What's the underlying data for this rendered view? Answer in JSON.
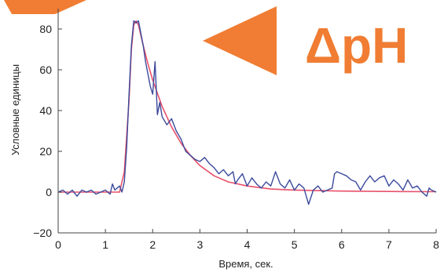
{
  "banner": {
    "text": "ΔpH",
    "color": "#f07d33"
  },
  "chart_data": {
    "type": "line",
    "xlabel": "Время, сек.",
    "ylabel": "Условные единицы",
    "xlim": [
      0,
      8
    ],
    "ylim": [
      -20,
      90
    ],
    "x_ticks": [
      "0",
      "1",
      "2",
      "3",
      "4",
      "5",
      "6",
      "7",
      "8"
    ],
    "y_ticks": [
      "−20",
      "0",
      "20",
      "40",
      "60",
      "80"
    ],
    "y_tick_values": [
      -20,
      0,
      20,
      40,
      60,
      80
    ],
    "grid": false,
    "series": [
      {
        "color": "#3b4a9c",
        "points": [
          [
            0.0,
            0
          ],
          [
            0.1,
            1
          ],
          [
            0.2,
            -1
          ],
          [
            0.3,
            1
          ],
          [
            0.4,
            -2
          ],
          [
            0.5,
            1
          ],
          [
            0.6,
            0
          ],
          [
            0.7,
            1
          ],
          [
            0.8,
            -1
          ],
          [
            0.9,
            0
          ],
          [
            1.0,
            1
          ],
          [
            1.1,
            -1
          ],
          [
            1.15,
            4
          ],
          [
            1.2,
            1
          ],
          [
            1.3,
            3
          ],
          [
            1.35,
            0
          ],
          [
            1.4,
            5
          ],
          [
            1.45,
            22
          ],
          [
            1.5,
            48
          ],
          [
            1.55,
            72
          ],
          [
            1.6,
            84
          ],
          [
            1.65,
            83
          ],
          [
            1.7,
            84
          ],
          [
            1.75,
            78
          ],
          [
            1.8,
            72
          ],
          [
            1.85,
            64
          ],
          [
            1.9,
            58
          ],
          [
            1.95,
            52
          ],
          [
            2.0,
            48
          ],
          [
            2.05,
            64
          ],
          [
            2.1,
            38
          ],
          [
            2.15,
            44
          ],
          [
            2.2,
            37
          ],
          [
            2.3,
            33
          ],
          [
            2.4,
            36
          ],
          [
            2.5,
            30
          ],
          [
            2.6,
            26
          ],
          [
            2.7,
            20
          ],
          [
            2.8,
            18
          ],
          [
            2.9,
            16
          ],
          [
            3.0,
            15
          ],
          [
            3.1,
            17
          ],
          [
            3.2,
            14
          ],
          [
            3.3,
            12
          ],
          [
            3.4,
            9
          ],
          [
            3.5,
            11
          ],
          [
            3.6,
            8
          ],
          [
            3.7,
            10
          ],
          [
            3.75,
            4
          ],
          [
            3.8,
            6
          ],
          [
            3.9,
            9
          ],
          [
            4.0,
            3
          ],
          [
            4.1,
            7
          ],
          [
            4.2,
            4
          ],
          [
            4.3,
            2
          ],
          [
            4.4,
            5
          ],
          [
            4.5,
            3
          ],
          [
            4.6,
            10
          ],
          [
            4.7,
            4
          ],
          [
            4.8,
            2
          ],
          [
            4.9,
            6
          ],
          [
            5.0,
            1
          ],
          [
            5.1,
            4
          ],
          [
            5.2,
            2
          ],
          [
            5.3,
            -6
          ],
          [
            5.4,
            1
          ],
          [
            5.5,
            3
          ],
          [
            5.6,
            0
          ],
          [
            5.7,
            1
          ],
          [
            5.8,
            2
          ],
          [
            5.85,
            9
          ],
          [
            5.9,
            10
          ],
          [
            6.0,
            9
          ],
          [
            6.1,
            8
          ],
          [
            6.2,
            6
          ],
          [
            6.3,
            5
          ],
          [
            6.4,
            1
          ],
          [
            6.5,
            5
          ],
          [
            6.6,
            8
          ],
          [
            6.7,
            5
          ],
          [
            6.8,
            7
          ],
          [
            6.9,
            8
          ],
          [
            7.0,
            3
          ],
          [
            7.1,
            6
          ],
          [
            7.2,
            4
          ],
          [
            7.3,
            1
          ],
          [
            7.4,
            6
          ],
          [
            7.5,
            2
          ],
          [
            7.6,
            3
          ],
          [
            7.7,
            0
          ],
          [
            7.8,
            -2
          ],
          [
            7.85,
            2
          ],
          [
            7.9,
            1
          ],
          [
            8.0,
            0
          ]
        ]
      },
      {
        "color": "#e8506a",
        "points": [
          [
            0.0,
            0
          ],
          [
            1.3,
            0
          ],
          [
            1.4,
            10
          ],
          [
            1.5,
            45
          ],
          [
            1.55,
            70
          ],
          [
            1.6,
            82
          ],
          [
            1.65,
            84
          ],
          [
            1.7,
            82
          ],
          [
            1.8,
            72
          ],
          [
            1.9,
            63
          ],
          [
            2.0,
            55
          ],
          [
            2.2,
            42
          ],
          [
            2.4,
            32
          ],
          [
            2.6,
            24
          ],
          [
            2.8,
            18
          ],
          [
            3.0,
            13
          ],
          [
            3.3,
            8
          ],
          [
            3.6,
            5
          ],
          [
            4.0,
            3
          ],
          [
            4.5,
            1.5
          ],
          [
            5.0,
            1
          ],
          [
            6.0,
            0.5
          ],
          [
            7.0,
            0.3
          ],
          [
            8.0,
            0.2
          ]
        ]
      }
    ]
  }
}
